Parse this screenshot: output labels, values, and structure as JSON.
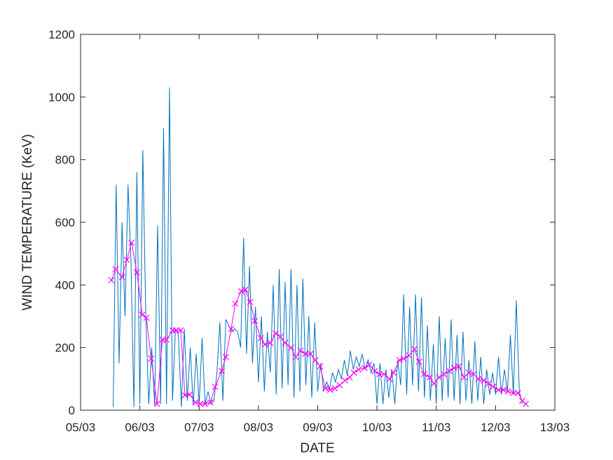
{
  "chart_data": {
    "type": "line",
    "xlabel": "DATE",
    "ylabel": "WIND  TEMPERATURE (KeV)",
    "xlim": [
      5,
      13
    ],
    "xticks": [
      {
        "value": 5,
        "label": "05/03"
      },
      {
        "value": 6,
        "label": "06/03"
      },
      {
        "value": 7,
        "label": "07/03"
      },
      {
        "value": 8,
        "label": "08/03"
      },
      {
        "value": 9,
        "label": "09/03"
      },
      {
        "value": 10,
        "label": "10/03"
      },
      {
        "value": 11,
        "label": "11/03"
      },
      {
        "value": 12,
        "label": "12/03"
      },
      {
        "value": 13,
        "label": "13/03"
      }
    ],
    "ylim": [
      0,
      1200
    ],
    "yticks": [
      0,
      200,
      400,
      600,
      800,
      1000,
      1200
    ],
    "series": [
      {
        "color": "#0072BD",
        "marker": "none",
        "x": [
          5.55,
          5.6,
          5.65,
          5.7,
          5.75,
          5.8,
          5.85,
          5.9,
          5.95,
          6.0,
          6.05,
          6.1,
          6.15,
          6.2,
          6.25,
          6.3,
          6.35,
          6.4,
          6.45,
          6.5,
          6.55,
          6.6,
          6.65,
          6.7,
          6.75,
          6.8,
          6.85,
          6.9,
          6.95,
          7.0,
          7.05,
          7.1,
          7.15,
          7.2,
          7.25,
          7.3,
          7.35,
          7.4,
          7.45,
          7.5,
          7.55,
          7.6,
          7.65,
          7.7,
          7.75,
          7.8,
          7.85,
          7.9,
          7.95,
          8.0,
          8.05,
          8.1,
          8.15,
          8.2,
          8.25,
          8.3,
          8.35,
          8.4,
          8.45,
          8.5,
          8.55,
          8.6,
          8.65,
          8.7,
          8.75,
          8.8,
          8.85,
          8.9,
          8.95,
          9.0,
          9.05,
          9.1,
          9.15,
          9.2,
          9.25,
          9.3,
          9.35,
          9.4,
          9.45,
          9.5,
          9.55,
          9.6,
          9.65,
          9.7,
          9.75,
          9.8,
          9.85,
          9.9,
          9.95,
          10.0,
          10.05,
          10.1,
          10.15,
          10.2,
          10.25,
          10.3,
          10.35,
          10.4,
          10.45,
          10.5,
          10.55,
          10.6,
          10.65,
          10.7,
          10.75,
          10.8,
          10.85,
          10.9,
          10.95,
          11.0,
          11.05,
          11.1,
          11.15,
          11.2,
          11.25,
          11.3,
          11.35,
          11.4,
          11.45,
          11.5,
          11.55,
          11.6,
          11.65,
          11.7,
          11.75,
          11.8,
          11.85,
          11.9,
          11.95,
          12.0,
          12.05,
          12.1,
          12.15,
          12.2,
          12.25,
          12.3,
          12.35,
          12.4,
          12.45
        ],
        "values": [
          10,
          720,
          150,
          600,
          300,
          720,
          480,
          10,
          760,
          20,
          830,
          300,
          20,
          200,
          15,
          590,
          20,
          900,
          20,
          1030,
          30,
          260,
          240,
          10,
          260,
          30,
          200,
          15,
          180,
          20,
          230,
          20,
          60,
          20,
          30,
          120,
          280,
          30,
          290,
          270,
          250,
          260,
          250,
          200,
          550,
          180,
          460,
          150,
          330,
          90,
          300,
          60,
          250,
          120,
          400,
          50,
          450,
          70,
          410,
          80,
          450,
          40,
          400,
          60,
          420,
          80,
          300,
          40,
          280,
          60,
          150,
          60,
          90,
          70,
          120,
          90,
          130,
          100,
          160,
          110,
          190,
          130,
          170,
          140,
          180,
          130,
          160,
          120,
          150,
          20,
          150,
          20,
          130,
          40,
          130,
          20,
          160,
          80,
          370,
          50,
          330,
          80,
          370,
          60,
          360,
          40,
          270,
          30,
          210,
          20,
          300,
          30,
          230,
          40,
          290,
          30,
          240,
          20,
          250,
          30,
          160,
          20,
          220,
          30,
          170,
          20,
          130,
          50,
          120,
          50,
          170,
          50,
          130,
          60,
          240,
          50,
          350,
          60,
          20
        ]
      },
      {
        "color": "#FF00FF",
        "marker": "x",
        "x": [
          5.52,
          5.59,
          5.7,
          5.78,
          5.86,
          5.95,
          6.04,
          6.11,
          6.19,
          6.29,
          6.38,
          6.45,
          6.55,
          6.61,
          6.69,
          6.76,
          6.84,
          6.94,
          7.02,
          7.1,
          7.19,
          7.27,
          7.38,
          7.45,
          7.54,
          7.61,
          7.71,
          7.78,
          7.86,
          7.94,
          8.04,
          8.11,
          8.2,
          8.29,
          8.37,
          8.45,
          8.55,
          8.63,
          8.71,
          8.79,
          8.88,
          8.96,
          9.04,
          9.13,
          9.21,
          9.29,
          9.37,
          9.46,
          9.54,
          9.61,
          9.69,
          9.79,
          9.87,
          9.96,
          10.04,
          10.12,
          10.21,
          10.28,
          10.38,
          10.45,
          10.54,
          10.63,
          10.71,
          10.79,
          10.89,
          10.96,
          11.05,
          11.13,
          11.22,
          11.3,
          11.38,
          11.47,
          11.55,
          11.63,
          11.71,
          11.8,
          11.88,
          11.96,
          12.05,
          12.13,
          12.21,
          12.3,
          12.38,
          12.45,
          12.51
        ],
        "values": [
          415,
          450,
          425,
          480,
          535,
          440,
          305,
          295,
          165,
          20,
          225,
          225,
          255,
          255,
          255,
          48,
          50,
          25,
          20,
          20,
          25,
          75,
          125,
          170,
          260,
          340,
          380,
          385,
          345,
          285,
          230,
          210,
          215,
          245,
          235,
          215,
          200,
          170,
          190,
          180,
          180,
          160,
          140,
          70,
          65,
          70,
          80,
          95,
          105,
          120,
          130,
          135,
          145,
          125,
          115,
          115,
          100,
          120,
          160,
          165,
          175,
          195,
          155,
          115,
          105,
          85,
          105,
          115,
          125,
          135,
          140,
          105,
          120,
          115,
          100,
          95,
          85,
          75,
          65,
          65,
          60,
          55,
          55,
          30,
          20
        ]
      }
    ]
  }
}
